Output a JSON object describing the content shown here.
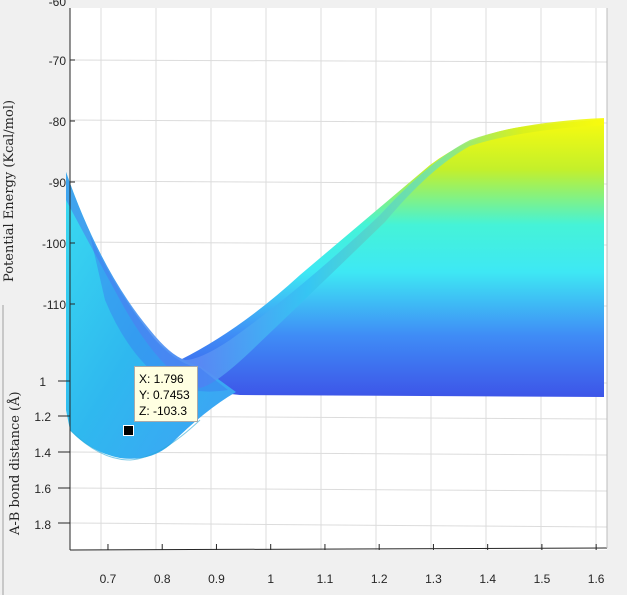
{
  "chart_data": {
    "type": "surface",
    "title": "",
    "zlabel": "Potential Energy (Kcal/mol)",
    "ylabel": "A-B bond distance (Å)",
    "xlabel": "",
    "x_ticks": [
      "0.7",
      "0.8",
      "0.9",
      "1",
      "1.1",
      "1.2",
      "1.3",
      "1.4",
      "1.5",
      "1.6"
    ],
    "x_range": [
      0.63,
      1.62
    ],
    "y_ticks": [
      "1",
      "1.2",
      "1.4",
      "1.6",
      "1.8"
    ],
    "z_ticks": [
      "-70",
      "-80",
      "-90",
      "-100",
      "-110"
    ],
    "z_partial_top_tick": "-60",
    "grid": true,
    "colormap": "parula",
    "front_profile": {
      "description_values": "potential energy profile along x at the far edge",
      "x": [
        0.63,
        0.7,
        0.74,
        0.8,
        0.85,
        0.9,
        1.0,
        1.1,
        1.2,
        1.3,
        1.35,
        1.4,
        1.5,
        1.6,
        1.62
      ],
      "z": [
        -89,
        -101,
        -107,
        -111.5,
        -113,
        -112,
        -106,
        -97,
        -90,
        -85,
        -82,
        -79,
        -77,
        -76,
        -76
      ]
    },
    "data_tip": {
      "lines": [
        "X: 1.796",
        "Y: 0.7453",
        "Z: -103.3"
      ]
    }
  }
}
